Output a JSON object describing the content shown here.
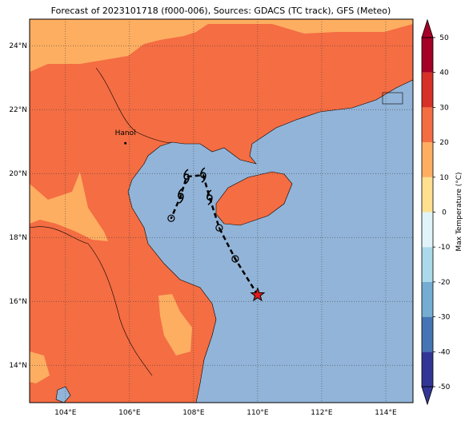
{
  "title": "Forecast of 2023101718 (f000-006), Sources: GDACS (TC track), GFS (Meteo)",
  "map": {
    "xlim": [
      102.88,
      114.85
    ],
    "ylim": [
      12.83,
      24.83
    ],
    "lon_ticks": [
      {
        "value": 104,
        "label": "104°E"
      },
      {
        "value": 106,
        "label": "106°E"
      },
      {
        "value": 108,
        "label": "108°E"
      },
      {
        "value": 110,
        "label": "110°E"
      },
      {
        "value": 112,
        "label": "112°E"
      },
      {
        "value": 114,
        "label": "114°E"
      }
    ],
    "lat_ticks": [
      {
        "value": 14,
        "label": "14°N"
      },
      {
        "value": 16,
        "label": "16°N"
      },
      {
        "value": 18,
        "label": "18°N"
      },
      {
        "value": 20,
        "label": "20°N"
      },
      {
        "value": 22,
        "label": "22°N"
      },
      {
        "value": 24,
        "label": "24°N"
      }
    ],
    "grid": true,
    "places": [
      {
        "name": "Hanoi",
        "lon": 105.87,
        "lat": 20.95
      }
    ],
    "track": {
      "lon": [
        110.0,
        109.3,
        108.8,
        108.5,
        108.3,
        107.78,
        107.6,
        107.3
      ],
      "lat": [
        16.2,
        17.33,
        18.3,
        19.25,
        19.95,
        19.9,
        19.3,
        18.6
      ],
      "markers": [
        "star",
        "circle",
        "circle",
        "typhoon",
        "typhoon",
        "typhoon",
        "typhoon",
        "circle"
      ],
      "color": "#000000",
      "star_color": "#e31a1c"
    }
  },
  "colorbar": {
    "label": "Max Temperature (°C)",
    "lim": [
      -50,
      50
    ],
    "ticks": [
      -50,
      -40,
      -30,
      -20,
      -10,
      0,
      10,
      20,
      30,
      40,
      50
    ],
    "colors": [
      "#313695",
      "#4575b4",
      "#74add1",
      "#abd9e9",
      "#e0f3f8",
      "#fee090",
      "#fdae61",
      "#f46d43",
      "#d73027",
      "#a50026"
    ]
  }
}
